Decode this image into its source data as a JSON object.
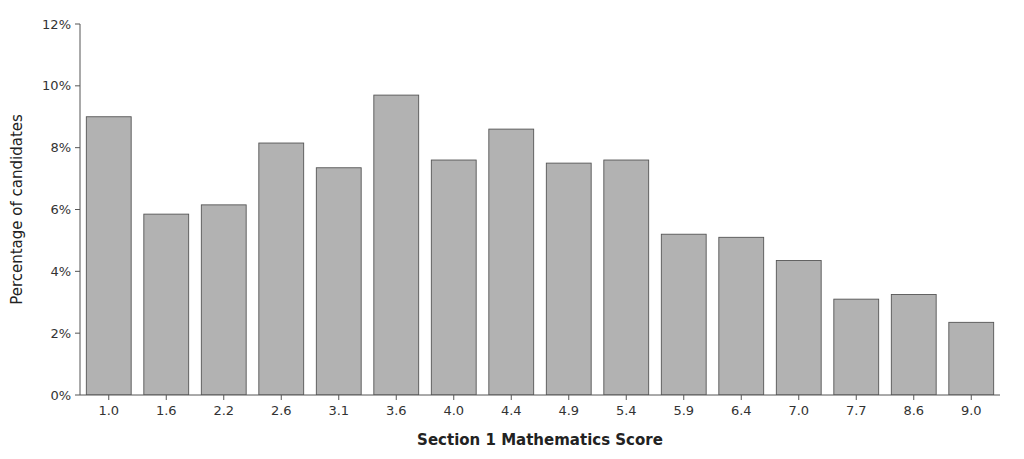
{
  "chart_data": {
    "type": "bar",
    "categories": [
      "1.0",
      "1.6",
      "2.2",
      "2.6",
      "3.1",
      "3.6",
      "4.0",
      "4.4",
      "4.9",
      "5.4",
      "5.9",
      "6.4",
      "7.0",
      "7.7",
      "8.6",
      "9.0"
    ],
    "values": [
      9.0,
      5.85,
      6.15,
      8.15,
      7.35,
      9.7,
      7.6,
      8.6,
      7.5,
      7.6,
      5.2,
      5.1,
      4.35,
      3.1,
      3.25,
      2.35
    ],
    "color": "#b2b2b2",
    "xlabel": "Section 1 Mathematics Score",
    "ylabel": "Percentage of candidates",
    "ylim": [
      0,
      12
    ],
    "yticks": [
      {
        "value": 0,
        "label": "0%"
      },
      {
        "value": 2,
        "label": "2%"
      },
      {
        "value": 4,
        "label": "4%"
      },
      {
        "value": 6,
        "label": "6%"
      },
      {
        "value": 8,
        "label": "8%"
      },
      {
        "value": 10,
        "label": "10%"
      },
      {
        "value": 12,
        "label": "12%"
      }
    ],
    "grid": false
  }
}
